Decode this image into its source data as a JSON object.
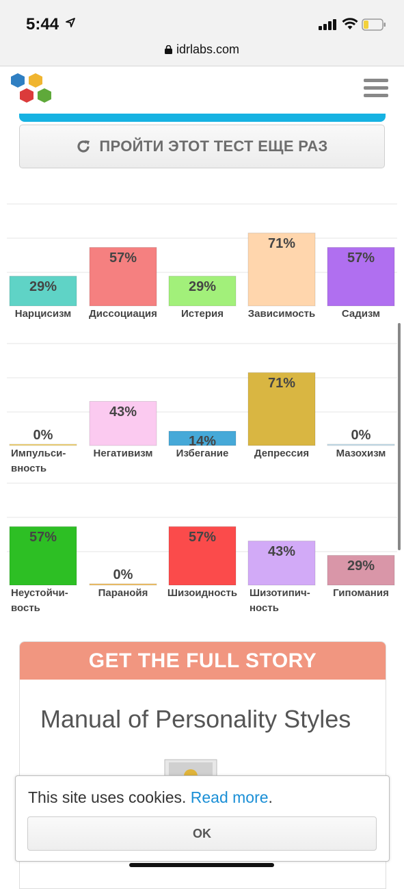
{
  "status": {
    "time": "5:44",
    "url": "idrlabs.com"
  },
  "retake_button": {
    "label": "ПРОЙТИ ЭТОТ ТЕСТ ЕЩЕ РАЗ"
  },
  "chart_data": [
    {
      "type": "bar",
      "categories": [
        "Нарцисизм",
        "Диссоциация",
        "Истерия",
        "Зависимость",
        "Садизм"
      ],
      "values": [
        29,
        57,
        29,
        71,
        57
      ],
      "value_labels": [
        "29%",
        "57%",
        "29%",
        "71%",
        "57%"
      ],
      "colors": [
        "#5fd3c6",
        "#f58080",
        "#a2f07a",
        "#ffd6ad",
        "#b06ff0"
      ],
      "ylim": [
        0,
        100
      ]
    },
    {
      "type": "bar",
      "categories": [
        "Импульси-\nвность",
        "Негативизм",
        "Избегание",
        "Депрессия",
        "Мазохизм"
      ],
      "values": [
        0,
        43,
        14,
        71,
        0
      ],
      "value_labels": [
        "0%",
        "43%",
        "14%",
        "71%",
        "0%"
      ],
      "colors": [
        "#f5d67a",
        "#fbcaf0",
        "#46a9d8",
        "#d9b642",
        "#c9e2ee"
      ],
      "ylim": [
        0,
        100
      ]
    },
    {
      "type": "bar",
      "categories": [
        "Неустойчи-\nвость",
        "Паранойя",
        "Шизоидность",
        "Шизотипич-\nность",
        "Гипомания"
      ],
      "values": [
        57,
        0,
        57,
        43,
        29
      ],
      "value_labels": [
        "57%",
        "0%",
        "57%",
        "43%",
        "29%"
      ],
      "colors": [
        "#2dbf24",
        "#f5c56a",
        "#fb4b4b",
        "#d2aaf7",
        "#d996a8"
      ],
      "ylim": [
        0,
        100
      ]
    }
  ],
  "story": {
    "header": "GET THE FULL STORY",
    "title": "Manual of Personality Styles"
  },
  "cookie": {
    "text": "This site uses cookies. ",
    "link": "Read more",
    "period": ".",
    "ok": "OK"
  }
}
